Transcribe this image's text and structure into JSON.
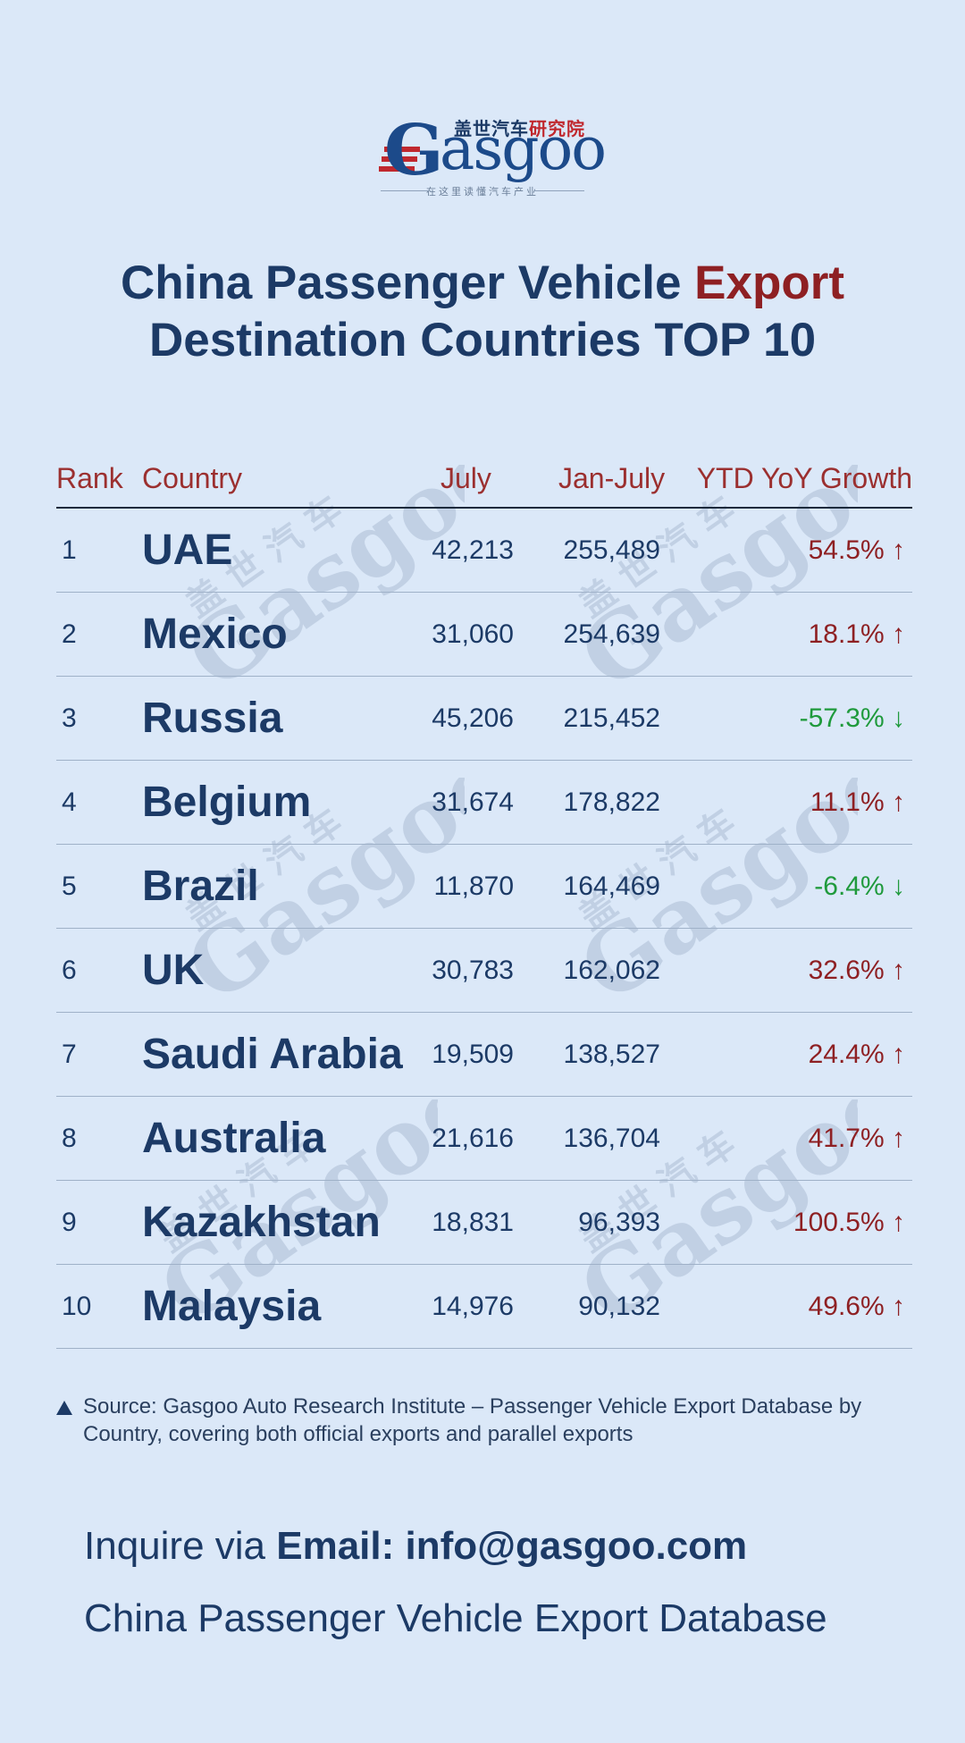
{
  "logo": {
    "cn_blue": "盖世汽车",
    "cn_red": "研究院",
    "wordmark_g": "G",
    "wordmark_rest": "asgoo",
    "tagline": "在这里读懂汽车产业"
  },
  "title": {
    "line1_prefix": "China Passenger Vehicle ",
    "line1_accent": "Export",
    "line2": "Destination Countries TOP 10"
  },
  "chart_data": {
    "type": "table",
    "columns": [
      "Rank",
      "Country",
      "July",
      "Jan-July",
      "YTD YoY Growth"
    ],
    "rows": [
      {
        "rank": "1",
        "country": "UAE",
        "july": "42,213",
        "jan_july": "255,489",
        "growth": "54.5% ↑",
        "trend": "up"
      },
      {
        "rank": "2",
        "country": "Mexico",
        "july": "31,060",
        "jan_july": "254,639",
        "growth": "18.1% ↑",
        "trend": "up"
      },
      {
        "rank": "3",
        "country": "Russia",
        "july": "45,206",
        "jan_july": "215,452",
        "growth": "-57.3% ↓",
        "trend": "down"
      },
      {
        "rank": "4",
        "country": "Belgium",
        "july": "31,674",
        "jan_july": "178,822",
        "growth": "11.1% ↑",
        "trend": "up"
      },
      {
        "rank": "5",
        "country": "Brazil",
        "july": "11,870",
        "jan_july": "164,469",
        "growth": "-6.4% ↓",
        "trend": "down"
      },
      {
        "rank": "6",
        "country": "UK",
        "july": "30,783",
        "jan_july": "162,062",
        "growth": "32.6% ↑",
        "trend": "up"
      },
      {
        "rank": "7",
        "country": "Saudi Arabia",
        "july": "19,509",
        "jan_july": "138,527",
        "growth": "24.4% ↑",
        "trend": "up"
      },
      {
        "rank": "8",
        "country": "Australia",
        "july": "21,616",
        "jan_july": "136,704",
        "growth": "41.7% ↑",
        "trend": "up"
      },
      {
        "rank": "9",
        "country": "Kazakhstan",
        "july": "18,831",
        "jan_july": "96,393",
        "growth": "100.5% ↑",
        "trend": "up"
      },
      {
        "rank": "10",
        "country": "Malaysia",
        "july": "14,976",
        "jan_july": "90,132",
        "growth": "49.6% ↑",
        "trend": "up"
      }
    ]
  },
  "source": "Source: Gasgoo Auto Research Institute – Passenger Vehicle Export Database by Country, covering both official exports and parallel exports",
  "inquire": {
    "prefix": "Inquire via ",
    "email_label": "Email: info@gasgoo.com"
  },
  "database": "China Passenger Vehicle Export Database",
  "colors": {
    "background": "#dbe8f8",
    "navy": "#1c3a66",
    "accent_red": "#8e2023",
    "growth_up": "#8e2023",
    "growth_down": "#1f9a3c"
  }
}
